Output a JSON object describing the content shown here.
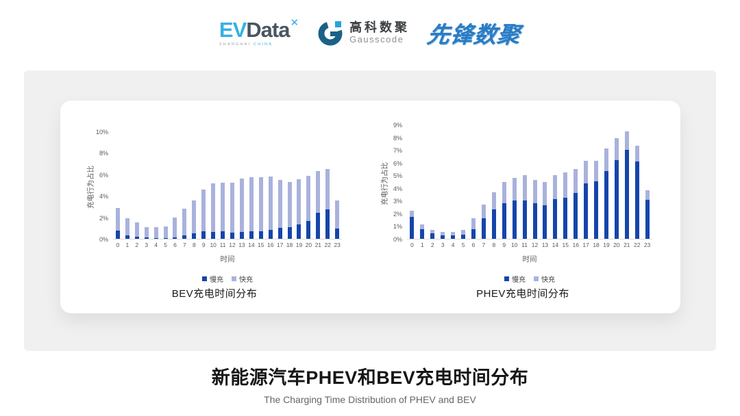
{
  "header": {
    "logos": {
      "evdata": {
        "ev": "EV",
        "data": "Data",
        "mark": "✕",
        "sub1": "SHANGHAI",
        "sub2": "CHINA"
      },
      "gausscode": {
        "cn": "高科数聚",
        "en": "Gausscode"
      },
      "pioneer": {
        "text": "先锋数聚"
      }
    }
  },
  "colors": {
    "slow_charge": "#1545ab",
    "fast_charge": "#a9b2dc",
    "axis_text": "#595959",
    "band_background": "#f0f0f1"
  },
  "chart_data": [
    {
      "type": "bar",
      "stacked": true,
      "title": "BEV充电时间分布",
      "ylabel": "充电行为占比",
      "xlabel": "时间",
      "legend_position": "bottom",
      "grid": false,
      "ylim": [
        0,
        10
      ],
      "ytick_step": 2,
      "ytick_suffix": "%",
      "categories": [
        "0",
        "1",
        "2",
        "3",
        "4",
        "5",
        "6",
        "7",
        "8",
        "9",
        "10",
        "11",
        "12",
        "13",
        "14",
        "15",
        "16",
        "17",
        "18",
        "19",
        "20",
        "21",
        "22",
        "23"
      ],
      "series": [
        {
          "name": "慢充",
          "color": "#1545ab",
          "values": [
            0.75,
            0.35,
            0.2,
            0.1,
            0.08,
            0.05,
            0.15,
            0.35,
            0.5,
            0.7,
            0.65,
            0.7,
            0.6,
            0.65,
            0.7,
            0.7,
            0.85,
            1.0,
            1.1,
            1.35,
            1.65,
            2.4,
            2.75,
            0.95
          ]
        },
        {
          "name": "快充",
          "color": "#a9b2dc",
          "values": [
            2.1,
            1.55,
            1.3,
            1.0,
            1.0,
            1.1,
            1.8,
            2.45,
            3.05,
            3.9,
            4.5,
            4.5,
            4.6,
            4.95,
            5.05,
            5.05,
            4.95,
            4.45,
            4.2,
            4.2,
            4.2,
            3.9,
            3.75,
            2.6
          ]
        }
      ]
    },
    {
      "type": "bar",
      "stacked": true,
      "title": "PHEV充电时间分布",
      "ylabel": "充电行为占比",
      "xlabel": "时间",
      "legend_position": "bottom",
      "grid": false,
      "ylim": [
        0,
        9
      ],
      "ytick_step": 1,
      "ytick_suffix": "%",
      "categories": [
        "0",
        "1",
        "2",
        "3",
        "4",
        "5",
        "6",
        "7",
        "8",
        "9",
        "10",
        "11",
        "12",
        "13",
        "14",
        "15",
        "16",
        "17",
        "18",
        "19",
        "20",
        "21",
        "22",
        "23"
      ],
      "series": [
        {
          "name": "慢充",
          "color": "#1545ab",
          "values": [
            1.7,
            0.75,
            0.45,
            0.25,
            0.25,
            0.3,
            0.75,
            1.6,
            2.3,
            2.8,
            3.0,
            3.0,
            2.8,
            2.65,
            3.1,
            3.25,
            3.6,
            4.35,
            4.55,
            5.35,
            6.2,
            7.0,
            6.1,
            3.05
          ]
        },
        {
          "name": "快充",
          "color": "#a9b2dc",
          "values": [
            0.5,
            0.4,
            0.25,
            0.3,
            0.3,
            0.4,
            0.85,
            1.1,
            1.35,
            1.7,
            1.8,
            2.0,
            1.85,
            1.85,
            1.9,
            2.0,
            1.9,
            1.8,
            1.6,
            1.75,
            1.75,
            1.45,
            1.25,
            0.8
          ]
        }
      ]
    }
  ],
  "footer": {
    "title": "新能源汽车PHEV和BEV充电时间分布",
    "subtitle": "The Charging Time Distribution of PHEV and BEV"
  }
}
